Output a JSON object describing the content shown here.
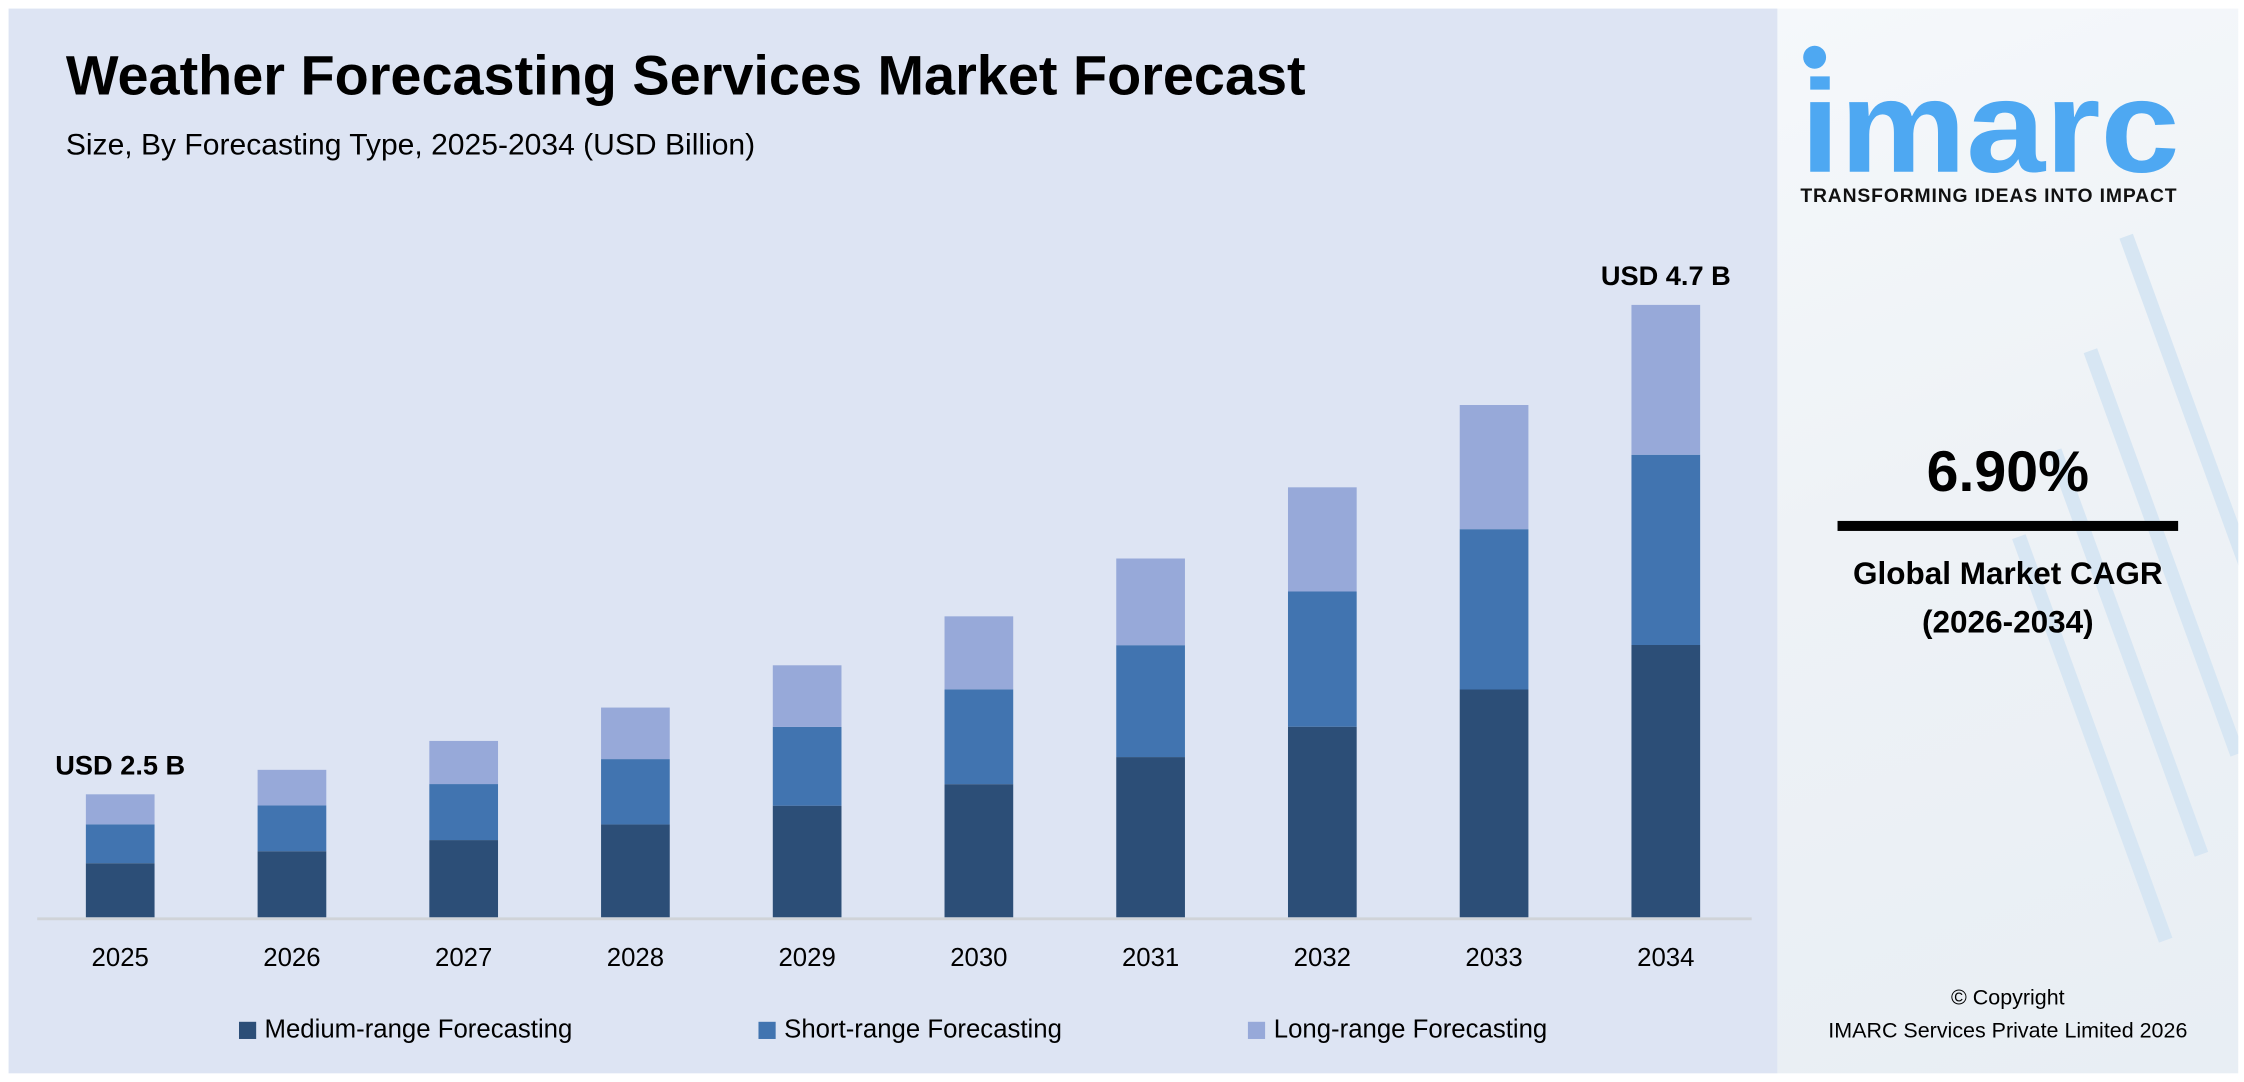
{
  "chart_data": {
    "type": "bar",
    "stacked": true,
    "title": "Weather Forecasting Services Market Forecast",
    "subtitle": "Size, By Forecasting Type, 2025-2034 (USD Billion)",
    "xlabel": "",
    "ylabel": "",
    "grid": false,
    "legend_position": "bottom",
    "categories": [
      "2025",
      "2026",
      "2027",
      "2028",
      "2029",
      "2030",
      "2031",
      "2032",
      "2033",
      "2034"
    ],
    "totals": [
      2.5,
      2.61,
      2.74,
      2.89,
      3.08,
      3.3,
      3.56,
      3.88,
      4.25,
      4.7
    ],
    "series": [
      {
        "name": "Medium-range Forecasting",
        "color": "#2c4e77",
        "values": [
          1.1,
          1.17,
          1.2,
          1.28,
          1.36,
          1.46,
          1.59,
          1.72,
          1.89,
          2.09
        ]
      },
      {
        "name": "Short-range Forecasting",
        "color": "#4174b0",
        "values": [
          0.79,
          0.81,
          0.87,
          0.9,
          0.96,
          1.04,
          1.11,
          1.22,
          1.33,
          1.46
        ]
      },
      {
        "name": "Long-range Forecasting",
        "color": "#97a9d9",
        "values": [
          0.61,
          0.63,
          0.67,
          0.71,
          0.75,
          0.8,
          0.86,
          0.94,
          1.03,
          1.15
        ]
      }
    ],
    "annotations": [
      {
        "category": "2025",
        "text": "USD 2.5 B"
      },
      {
        "category": "2034",
        "text": "USD 4.7 B"
      }
    ]
  },
  "side": {
    "logo_text": "imarc",
    "tagline": "TRANSFORMING IDEAS INTO IMPACT",
    "cagr_value": "6.90%",
    "cagr_label": "Global Market CAGR",
    "cagr_period": "(2026-2034)",
    "copyright_line1": "© Copyright",
    "copyright_line2": "IMARC Services Private Limited 2026",
    "brand_color": "#4ea8f2"
  }
}
